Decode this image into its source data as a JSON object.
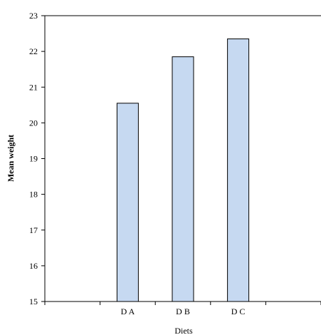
{
  "chart_data": {
    "type": "bar",
    "categories": [
      "",
      "D A",
      "D B",
      "D C",
      ""
    ],
    "values": [
      null,
      20.55,
      21.85,
      22.35,
      null
    ],
    "title": "",
    "xlabel": "Diets",
    "ylabel": "Mean weight",
    "ylim": [
      15,
      23
    ],
    "yticks": [
      15,
      16,
      17,
      18,
      19,
      20,
      21,
      22,
      23
    ],
    "grid": false,
    "legend": "none",
    "bar_color": "#c6d9f1",
    "bar_edge_color": "#000000"
  }
}
